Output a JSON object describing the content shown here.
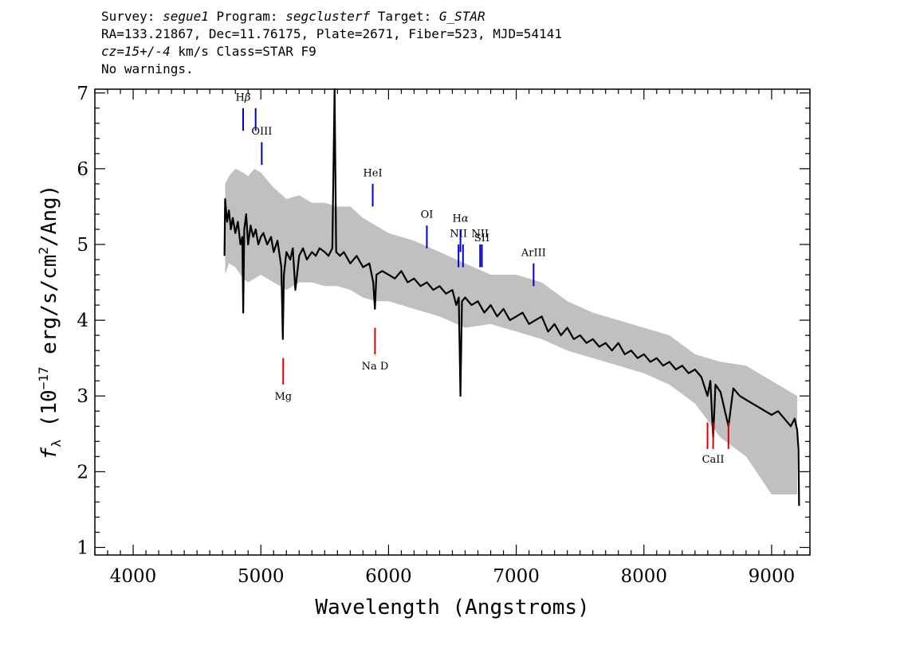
{
  "header": {
    "line1": {
      "survey_label": "Survey: ",
      "survey": "segue1",
      "program_label": " Program: ",
      "program": "segclusterf",
      "target_label": " Target: ",
      "target": "G_STAR"
    },
    "line2": "RA=133.21867, Dec=11.76175, Plate=2671, Fiber=523, MJD=54141",
    "line3": {
      "cz": "cz=15+/-4",
      "rest": " km/s Class=STAR F9"
    },
    "line4": "No warnings."
  },
  "chart_data": {
    "type": "line",
    "xlabel": "Wavelength (Angstroms)",
    "ylabel": "f_λ (10^-17 erg/s/cm^2/Ang)",
    "ylabel_parts": {
      "f": "f",
      "lambda": "λ",
      "a": " (10",
      "e1": "−17",
      "b": " erg/s/cm",
      "e2": "2",
      "c": "/Ang)"
    },
    "xlim": [
      3700,
      9300
    ],
    "ylim": [
      0.9,
      7.05
    ],
    "xticks": [
      4000,
      5000,
      6000,
      7000,
      8000,
      9000
    ],
    "yticks": [
      1,
      2,
      3,
      4,
      5,
      6,
      7
    ],
    "x_minor_step": 100,
    "y_minor_step": 0.2,
    "grid": false,
    "series": [
      {
        "role": "error_band",
        "color": "#c0c0c0",
        "x": [
          4720,
          4750,
          4800,
          4860,
          4900,
          4950,
          5000,
          5100,
          5200,
          5300,
          5400,
          5500,
          5600,
          5700,
          5800,
          5900,
          6000,
          6200,
          6400,
          6600,
          6800,
          7000,
          7200,
          7400,
          7600,
          7800,
          8000,
          8200,
          8400,
          8600,
          8800,
          9000,
          9200
        ],
        "y": [
          5.8,
          5.9,
          6.0,
          5.95,
          5.9,
          6.0,
          5.95,
          5.75,
          5.6,
          5.65,
          5.55,
          5.55,
          5.5,
          5.5,
          5.35,
          5.25,
          5.15,
          5.05,
          4.9,
          4.75,
          4.6,
          4.6,
          4.5,
          4.25,
          4.1,
          4.0,
          3.9,
          3.8,
          3.55,
          3.45,
          3.4,
          3.2,
          3.0
        ]
      },
      {
        "role": "error_band_low",
        "color": "#c0c0c0",
        "x": [
          4720,
          4750,
          4800,
          4860,
          4900,
          4950,
          5000,
          5100,
          5200,
          5300,
          5400,
          5500,
          5600,
          5700,
          5800,
          5900,
          6000,
          6200,
          6400,
          6600,
          6800,
          7000,
          7200,
          7400,
          7600,
          7800,
          8000,
          8200,
          8400,
          8600,
          8800,
          9000,
          9200
        ],
        "y": [
          4.6,
          4.75,
          4.7,
          4.55,
          4.5,
          4.55,
          4.6,
          4.5,
          4.4,
          4.5,
          4.5,
          4.45,
          4.45,
          4.4,
          4.3,
          4.25,
          4.25,
          4.15,
          4.05,
          3.9,
          3.95,
          3.85,
          3.75,
          3.6,
          3.5,
          3.4,
          3.3,
          3.15,
          2.9,
          2.45,
          2.2,
          1.7,
          1.7
        ]
      },
      {
        "role": "spectrum",
        "color": "#000000",
        "x": [
          4715,
          4720,
          4735,
          4750,
          4765,
          4780,
          4800,
          4820,
          4840,
          4855,
          4862,
          4870,
          4885,
          4900,
          4920,
          4940,
          4960,
          4980,
          5000,
          5020,
          5050,
          5080,
          5100,
          5130,
          5160,
          5172,
          5180,
          5200,
          5230,
          5250,
          5270,
          5300,
          5330,
          5360,
          5400,
          5430,
          5460,
          5500,
          5530,
          5560,
          5577,
          5590,
          5620,
          5650,
          5700,
          5750,
          5800,
          5850,
          5880,
          5893,
          5905,
          5950,
          6000,
          6050,
          6100,
          6150,
          6200,
          6250,
          6300,
          6350,
          6400,
          6450,
          6500,
          6530,
          6550,
          6563,
          6575,
          6600,
          6650,
          6700,
          6750,
          6800,
          6850,
          6900,
          6950,
          7000,
          7050,
          7100,
          7150,
          7200,
          7250,
          7300,
          7350,
          7400,
          7450,
          7500,
          7550,
          7600,
          7650,
          7700,
          7750,
          7800,
          7850,
          7900,
          7950,
          8000,
          8050,
          8100,
          8150,
          8200,
          8250,
          8300,
          8350,
          8400,
          8450,
          8498,
          8520,
          8542,
          8560,
          8600,
          8662,
          8700,
          8750,
          8800,
          8850,
          8900,
          8950,
          9000,
          9050,
          9100,
          9150,
          9180,
          9200,
          9210,
          9215
        ],
        "y": [
          4.85,
          5.6,
          5.3,
          5.45,
          5.2,
          5.35,
          5.15,
          5.3,
          5.0,
          5.1,
          4.1,
          5.2,
          5.4,
          5.0,
          5.25,
          5.1,
          5.2,
          5.0,
          5.1,
          5.15,
          5.0,
          5.1,
          4.9,
          5.05,
          4.7,
          3.75,
          4.6,
          4.9,
          4.8,
          4.95,
          4.4,
          4.85,
          4.95,
          4.8,
          4.9,
          4.85,
          4.95,
          4.9,
          4.85,
          4.95,
          7.05,
          4.9,
          4.85,
          4.9,
          4.75,
          4.85,
          4.7,
          4.75,
          4.5,
          4.15,
          4.6,
          4.65,
          4.6,
          4.55,
          4.65,
          4.5,
          4.55,
          4.45,
          4.5,
          4.4,
          4.45,
          4.35,
          4.4,
          4.2,
          4.3,
          3.0,
          4.25,
          4.3,
          4.2,
          4.25,
          4.1,
          4.2,
          4.05,
          4.15,
          4.0,
          4.05,
          4.1,
          3.95,
          4.0,
          4.05,
          3.85,
          3.95,
          3.8,
          3.9,
          3.75,
          3.8,
          3.7,
          3.75,
          3.65,
          3.7,
          3.6,
          3.7,
          3.55,
          3.6,
          3.5,
          3.55,
          3.45,
          3.5,
          3.4,
          3.45,
          3.35,
          3.4,
          3.3,
          3.35,
          3.25,
          3.0,
          3.2,
          2.45,
          3.15,
          3.05,
          2.6,
          3.1,
          3.0,
          2.95,
          2.9,
          2.85,
          2.8,
          2.75,
          2.8,
          2.7,
          2.6,
          2.7,
          2.55,
          2.3,
          1.55
        ]
      }
    ],
    "emission_lines": [
      {
        "label": "Hβ",
        "label_parts": {
          "base": "H",
          "greek": "β"
        },
        "x": 4861,
        "y0": 6.5,
        "y1": 6.8,
        "label_y": 6.9
      },
      {
        "label": "",
        "x": 4959,
        "y0": 6.5,
        "y1": 6.8
      },
      {
        "label": "OIII",
        "x": 5007,
        "y0": 6.05,
        "y1": 6.35,
        "label_y": 6.45
      },
      {
        "label": "HeI",
        "x": 5876,
        "y0": 5.5,
        "y1": 5.8,
        "label_y": 5.9
      },
      {
        "label": "OI",
        "x": 6300,
        "y0": 4.95,
        "y1": 5.25,
        "label_y": 5.35
      },
      {
        "label": "NII",
        "x": 6548,
        "y0": 4.7,
        "y1": 5.0,
        "label_y": 5.1
      },
      {
        "label": "Hα",
        "label_parts": {
          "base": "H",
          "greek": "α"
        },
        "x": 6563,
        "y0": 4.9,
        "y1": 5.2,
        "label_y": 5.3
      },
      {
        "label": "",
        "x": 6583,
        "y0": 4.7,
        "y1": 5.0
      },
      {
        "label": "NII",
        "x": 6717,
        "y0": 4.7,
        "y1": 5.0,
        "label_y": 5.1
      },
      {
        "label": "SII",
        "x": 6731,
        "y0": 4.7,
        "y1": 5.0,
        "label_y": 5.04
      },
      {
        "label": "ArIII",
        "x": 7136,
        "y0": 4.45,
        "y1": 4.75,
        "label_y": 4.85
      }
    ],
    "absorption_lines": [
      {
        "label": "Mg",
        "x": 5175,
        "y0": 3.15,
        "y1": 3.5,
        "label_y": 2.95
      },
      {
        "label": "Na D",
        "x": 5894,
        "y0": 3.55,
        "y1": 3.9,
        "label_y": 3.35
      },
      {
        "label": "",
        "x": 8498,
        "y0": 2.3,
        "y1": 2.65
      },
      {
        "label": "CaII",
        "x": 8542,
        "y0": 2.3,
        "y1": 2.65,
        "label_y": 2.12
      },
      {
        "label": "",
        "x": 8662,
        "y0": 2.3,
        "y1": 2.65
      }
    ],
    "colors": {
      "emission": "#0000cc",
      "absorption": "#dd0000",
      "error": "#c0c0c0",
      "spectrum": "#000000"
    }
  }
}
